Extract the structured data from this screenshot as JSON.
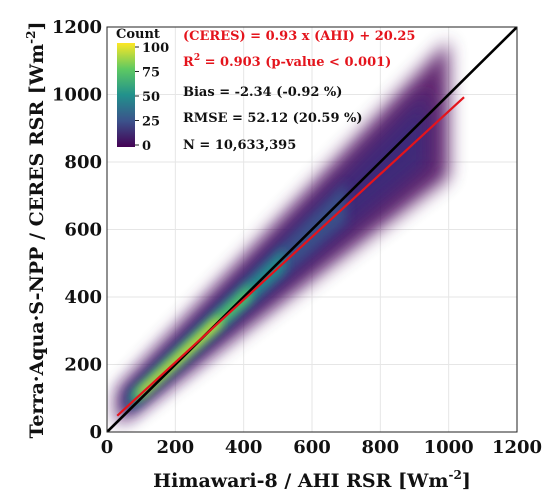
{
  "chart_data": {
    "type": "scatter",
    "xlabel": "Himawari-8 / AHI  RSR  [Wm",
    "xlabel_sup": "-2",
    "xlabel_end": "]",
    "ylabel": "Terra·Aqua·S-NPP / CERES  RSR  [Wm",
    "ylabel_sup": "-2",
    "ylabel_end": "]",
    "xlim": [
      0,
      1200
    ],
    "ylim": [
      0,
      1200
    ],
    "xticks": [
      "0",
      "200",
      "400",
      "600",
      "800",
      "1000",
      "1200"
    ],
    "yticks": [
      "0",
      "200",
      "400",
      "600",
      "800",
      "1000",
      "1200"
    ],
    "grid": true,
    "colorbar": {
      "title": "Count",
      "ticks": [
        "100",
        "75",
        "50",
        "25",
        "0"
      ]
    },
    "stats": {
      "regression": "(CERES) = 0.93 x (AHI) + 20.25",
      "r2_prefix": "R",
      "r2_sup": "2",
      "r2_rest": " = 0.903 (p-value < 0.001)",
      "bias": "Bias = -2.34 (-0.92 %)",
      "rmse": "RMSE = 52.12 (20.59 %)",
      "n": "N = 10,633,395"
    },
    "lines": [
      {
        "kind": "one-to-one",
        "x": [
          0,
          1200
        ],
        "y": [
          0,
          1200
        ],
        "color": "#000000"
      },
      {
        "kind": "regression",
        "x": [
          30,
          1045
        ],
        "y": [
          48.15,
          992.1
        ],
        "color": "#e4141c"
      }
    ],
    "density_colormap": [
      "#ffffff",
      "#440154",
      "#3b528b",
      "#21918c",
      "#5ec962",
      "#fde725"
    ],
    "stat_colors": {
      "regression": "#e4141c",
      "other": "#111111"
    }
  }
}
